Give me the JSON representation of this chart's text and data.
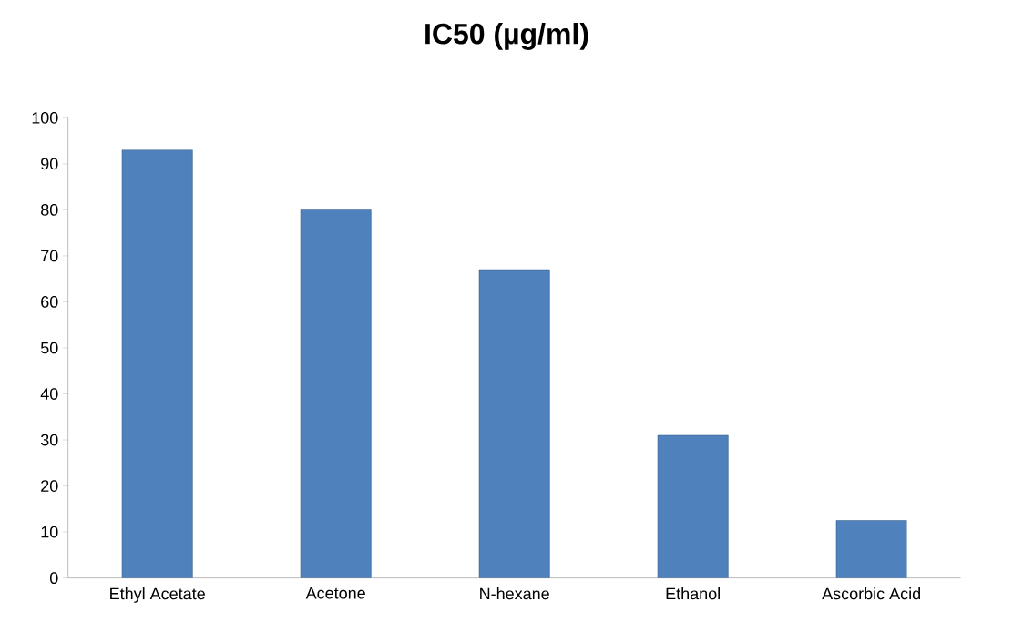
{
  "chart_data": {
    "type": "bar",
    "title": "**IC50 (µg/ml)**",
    "categories": [
      "Ethyl Acetate",
      "Acetone",
      "N-hexane",
      "Ethanol",
      "Ascorbic Acid"
    ],
    "values": [
      93,
      80,
      67,
      31,
      12.5
    ],
    "color": "#4f81bd",
    "ylim": [
      0,
      100
    ],
    "yticks": [
      0,
      10,
      20,
      30,
      40,
      50,
      60,
      70,
      80,
      90,
      100
    ]
  }
}
